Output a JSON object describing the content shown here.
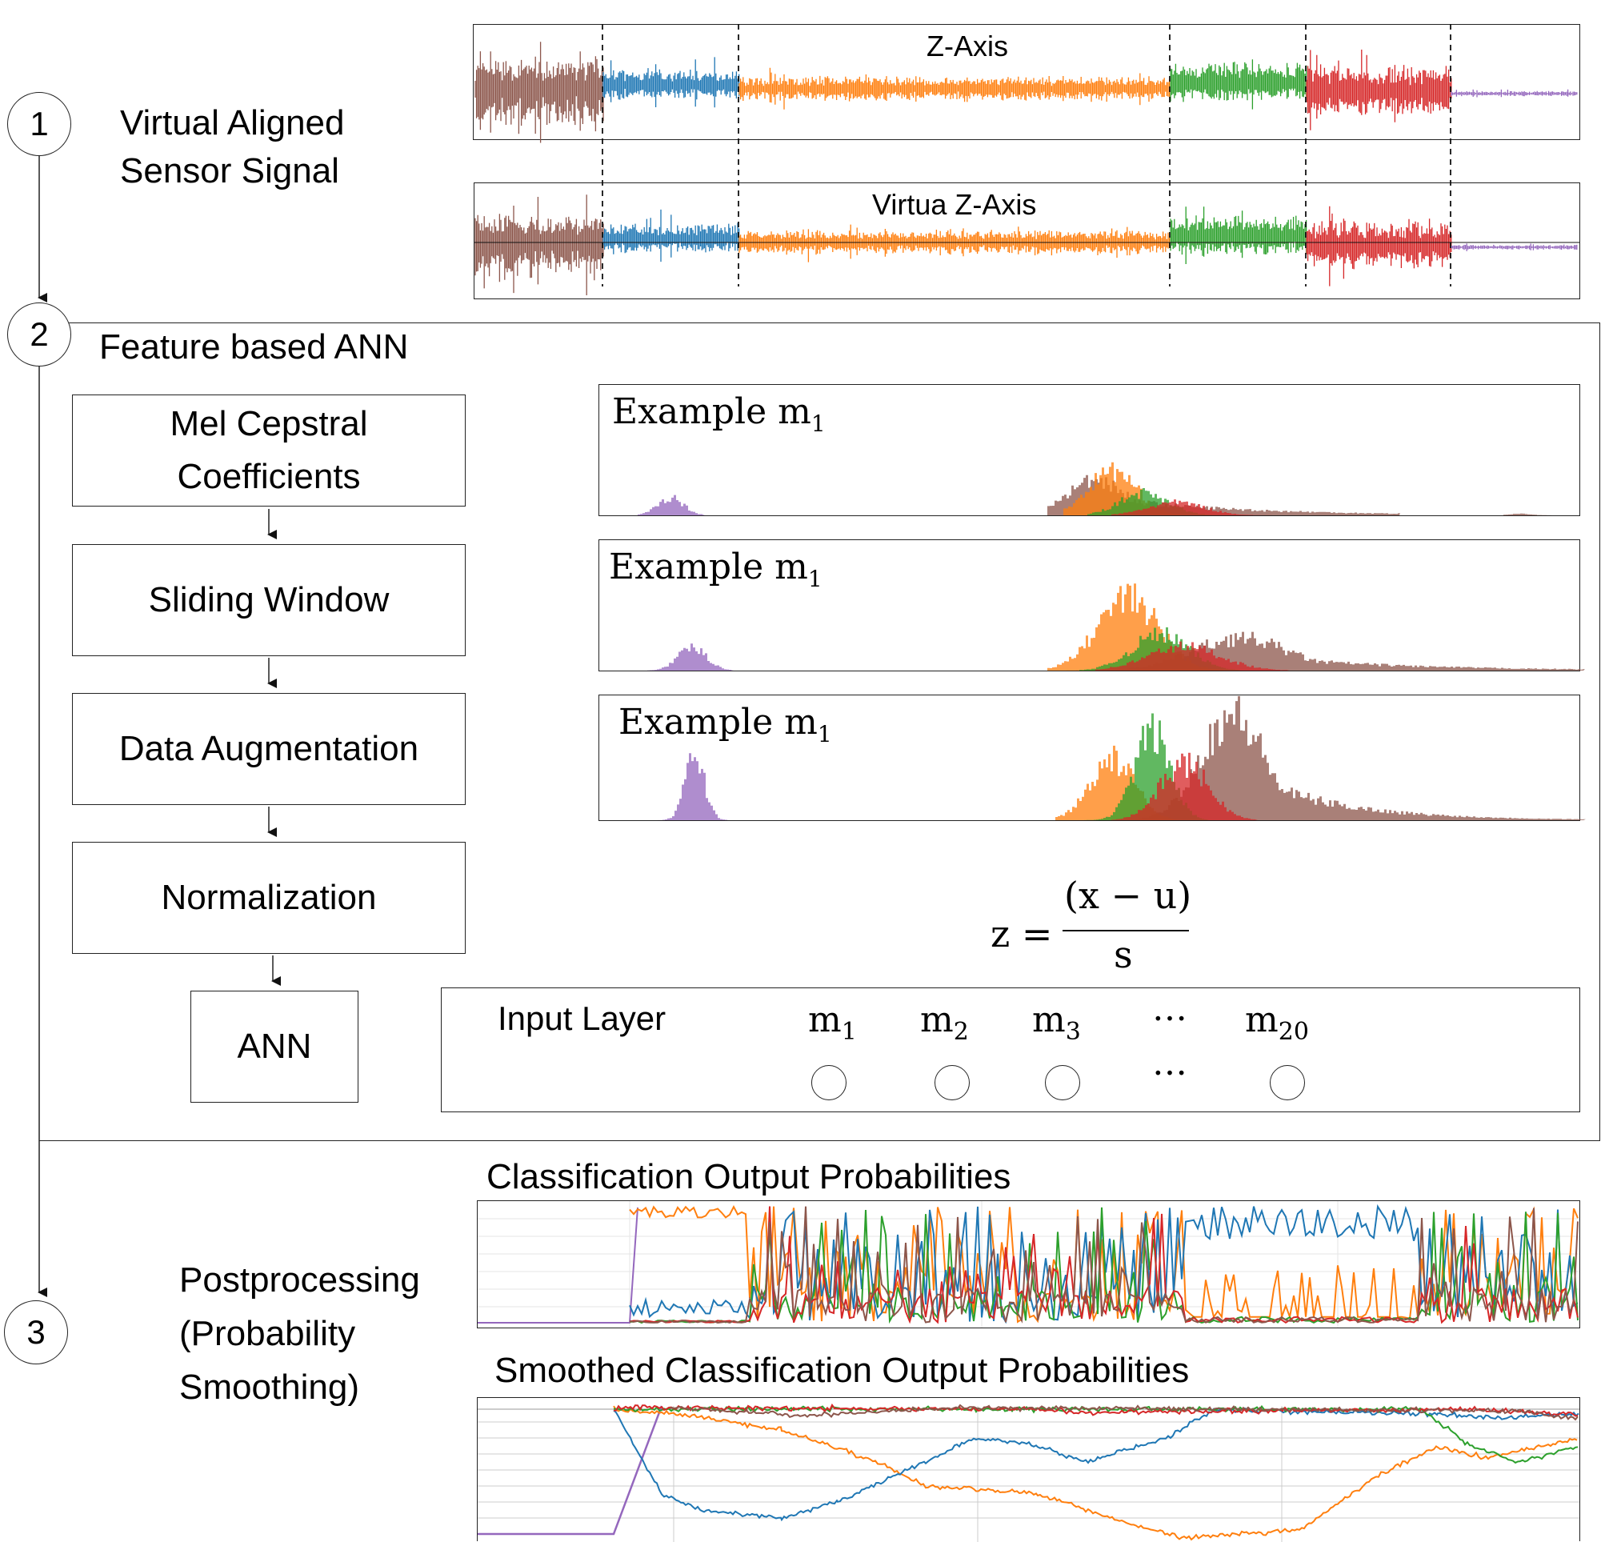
{
  "steps": [
    {
      "number": "1",
      "label": "Virtual Aligned\nSensor Signal"
    },
    {
      "number": "2",
      "label": "Feature based ANN"
    },
    {
      "number": "3",
      "label": "Postprocessing\n(Probability\nSmoothing)"
    }
  ],
  "signals": {
    "top_title": "Z-Axis",
    "bottom_title": "Virtua Z-Axis",
    "segment_colors": [
      "#8c564b",
      "#1f77b4",
      "#ff7f0e",
      "#2ca02c",
      "#d62728",
      "#9467bd"
    ]
  },
  "pipeline": [
    "Mel Cepstral Coefficients",
    "Sliding Window",
    "Data Augmentation",
    "Normalization",
    "ANN"
  ],
  "examples": [
    {
      "label": "Example m",
      "sub": "1"
    },
    {
      "label": "Example m",
      "sub": "1"
    },
    {
      "label": "Example m",
      "sub": "1"
    }
  ],
  "formula": {
    "lhs": "z =",
    "numerator": "(x − u)",
    "denominator": "s"
  },
  "input_layer": {
    "title": "Input Layer",
    "nodes": [
      {
        "base": "m",
        "sub": "1"
      },
      {
        "base": "m",
        "sub": "2"
      },
      {
        "base": "m",
        "sub": "3"
      },
      {
        "base": "…",
        "sub": ""
      },
      {
        "base": "m",
        "sub": "20"
      }
    ],
    "ellipsis": "…"
  },
  "outputs": {
    "raw_title": "Classification Output Probabilities",
    "smoothed_title": "Smoothed Classification Output Probabilities"
  },
  "colors": {
    "brown": "#8c564b",
    "blue": "#1f77b4",
    "orange": "#ff7f0e",
    "green": "#2ca02c",
    "red": "#d62728",
    "purple": "#9467bd"
  }
}
